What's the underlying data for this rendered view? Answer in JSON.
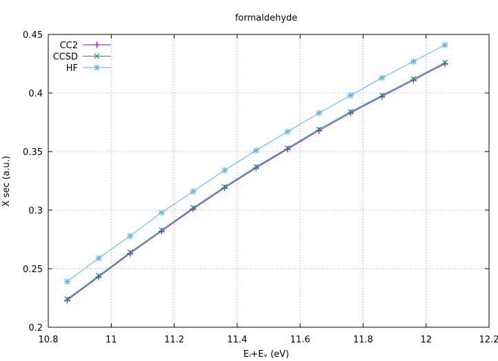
{
  "chart_data": {
    "type": "line",
    "title": "formaldehyde",
    "xlabel": "Eᵢ+Eᵥ (eV)",
    "ylabel": "X sec (a.u.)",
    "xlim": [
      10.8,
      12.2
    ],
    "ylim": [
      0.2,
      0.45
    ],
    "xticks": [
      "10.8",
      "11",
      "11.2",
      "11.4",
      "11.6",
      "11.8",
      "12",
      "12.2"
    ],
    "yticks": [
      "0.2",
      "0.25",
      "0.3",
      "0.35",
      "0.4",
      "0.45"
    ],
    "grid": true,
    "legend_position": "top-left",
    "x": [
      10.86,
      10.96,
      11.06,
      11.16,
      11.26,
      11.36,
      11.46,
      11.56,
      11.66,
      11.76,
      11.86,
      11.96,
      12.06
    ],
    "series": [
      {
        "name": "CC2",
        "color": "#9400d3",
        "marker": "plus",
        "values": [
          0.223,
          0.243,
          0.263,
          0.282,
          0.301,
          0.319,
          0.336,
          0.352,
          0.368,
          0.383,
          0.397,
          0.411,
          0.425
        ]
      },
      {
        "name": "CCSD",
        "color": "#009e73",
        "marker": "cross",
        "values": [
          0.224,
          0.244,
          0.264,
          0.283,
          0.302,
          0.32,
          0.337,
          0.353,
          0.369,
          0.384,
          0.398,
          0.412,
          0.426
        ]
      },
      {
        "name": "HF",
        "color": "#56b4e9",
        "marker": "star",
        "values": [
          0.239,
          0.259,
          0.278,
          0.298,
          0.316,
          0.334,
          0.351,
          0.367,
          0.383,
          0.398,
          0.413,
          0.427,
          0.441
        ]
      }
    ]
  }
}
